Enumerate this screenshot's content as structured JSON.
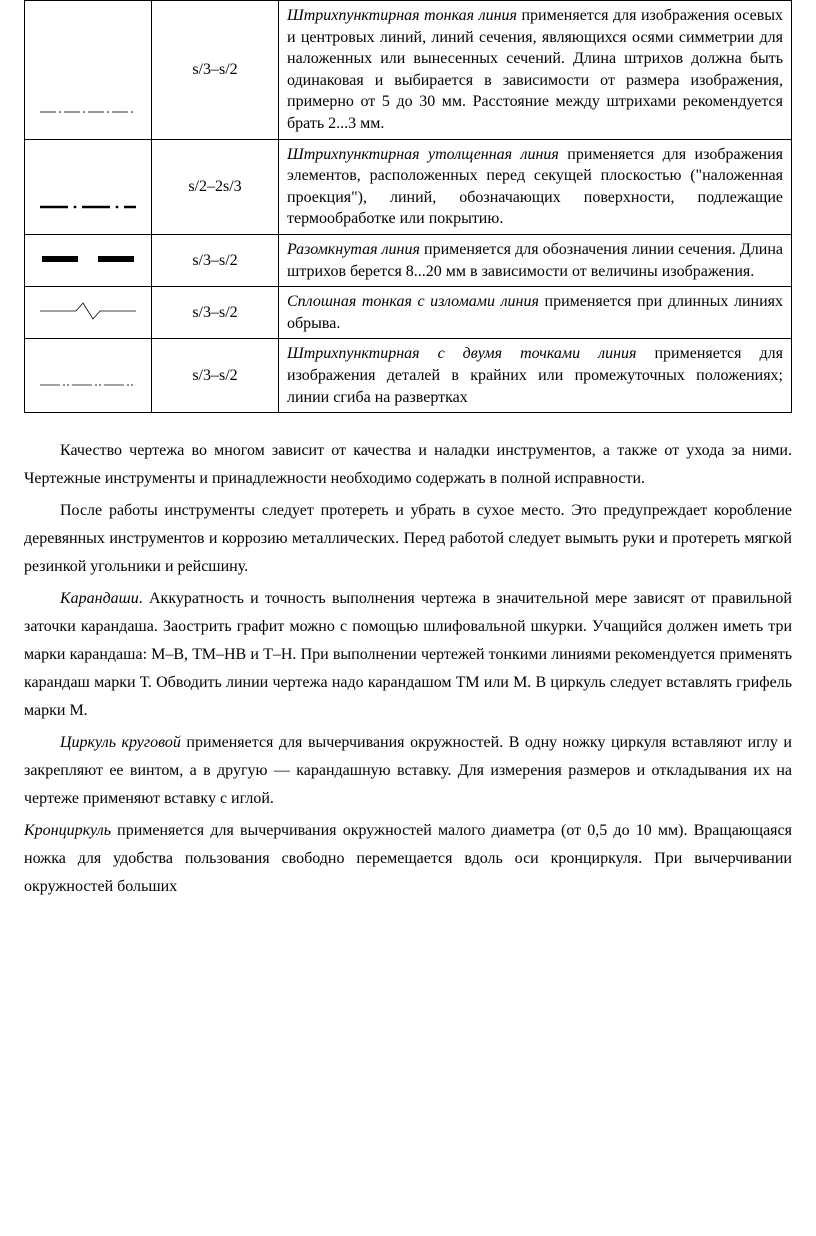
{
  "table": {
    "rows": [
      {
        "icon": "dash-dot-thin",
        "thickness": "s/3–s/2",
        "term": "Штрихпунктирная тонкая линия",
        "desc_rest": " применяется для изображения осевых и центровых линий, линий сечения, являющихся осями симметрии для наложенных или вынесенных сечений. Длина штрихов должна быть одинаковая и выбирается в зависимости от размера изображения, примерно от 5 до 30 мм. Расстояние между штрихами рекомендуется брать 2...3 мм."
      },
      {
        "icon": "dash-dot-thick",
        "thickness": "s/2–2s/3",
        "term": "Штрихпунктирная утолщенная линия",
        "desc_rest": " применяется для изображения элементов, расположенных перед секущей плоскостью (\"наложенная проекция\"), линий, обозначающих поверхности, подлежащие термообработке или покрытию."
      },
      {
        "icon": "open-thick",
        "thickness": "s/3–s/2",
        "term": "Разомкнутая линия",
        "desc_rest": " применяется для обозначения линии сечения. Длина штрихов берется 8...20 мм в зависимости от величины изображения."
      },
      {
        "icon": "zigzag-thin",
        "thickness": "s/3–s/2",
        "term": "Сплошная тонкая с изломами линия",
        "desc_rest": " применяется при длинных линиях обрыва."
      },
      {
        "icon": "dash-two-dot-thin",
        "thickness": "s/3–s/2",
        "term": "Штрихпунктирная с двумя точками линия",
        "desc_rest": " применяется для изображения деталей в крайних или промежуточных положениях; линии сгиба на развертках"
      }
    ]
  },
  "paragraphs": [
    {
      "lead_italic": "",
      "text": "Качество чертежа во многом зависит от качества и наладки инструментов, а также от ухода за ними. Чертежные инструменты и принадлежности необходимо содержать в полной исправности."
    },
    {
      "lead_italic": "",
      "text": "После работы инструменты следует протереть и убрать в сухое место. Это предупреждает коробление деревянных инструментов и коррозию металлических. Перед работой следует вымыть руки и протереть мягкой резинкой угольники и рейсшину."
    },
    {
      "lead_italic": "Карандаши",
      "text": ". Аккуратность и точность выполнения чертежа в значительной мере зависят от правильной заточки карандаша. Заострить графит можно с помощью шлифовальной шкурки. Учащийся должен иметь три марки карандаша: М–В, ТМ–НВ и Т–Н. При выполнении чертежей тонкими линиями рекомендуется применять карандаш марки Т. Обводить линии чертежа надо карандашом ТМ или М. В циркуль следует вставлять грифель марки М."
    },
    {
      "lead_italic": "Циркуль круговой",
      "text": " применяется для вычерчивания окружностей. В одну ножку циркуля вставляют иглу и закрепляют ее винтом, а в другую — карандашную вставку. Для измерения размеров и откладывания их на чертеже применяют вставку с иглой."
    },
    {
      "lead_italic": "Кронциркуль",
      "text": " применяется для вычерчивания окружностей малого диаметра (от 0,5 до 10 мм). Вращающаяся ножка для удобства пользования свободно перемещается вдоль оси кронциркуля. При вычерчивании окружностей больших",
      "noindent": true
    }
  ],
  "style": {
    "text_color": "#000000",
    "background": "#ffffff",
    "font_family": "Times New Roman",
    "table_border_color": "#000000",
    "line_color": "#000000"
  },
  "icons": {
    "dash-dot-thin": {
      "stroke_width": 0.8
    },
    "dash-dot-thick": {
      "stroke_width": 2.5
    },
    "open-thick": {
      "stroke_width": 6
    },
    "zigzag-thin": {
      "stroke_width": 0.8
    },
    "dash-two-dot-thin": {
      "stroke_width": 0.8
    }
  }
}
